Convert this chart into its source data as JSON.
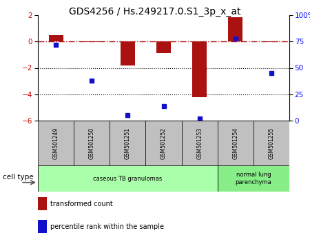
{
  "title": "GDS4256 / Hs.249217.0.S1_3p_x_at",
  "samples": [
    "GSM501249",
    "GSM501250",
    "GSM501251",
    "GSM501252",
    "GSM501253",
    "GSM501254",
    "GSM501255"
  ],
  "transformed_count": [
    0.5,
    -0.05,
    -1.8,
    -0.9,
    -4.2,
    1.85,
    -0.05
  ],
  "percentile_rank": [
    72,
    38,
    5,
    14,
    2,
    78,
    45
  ],
  "ylim_left": [
    -6,
    2
  ],
  "ylim_right": [
    0,
    100
  ],
  "yticks_left": [
    -6,
    -4,
    -2,
    0,
    2
  ],
  "yticks_right": [
    0,
    25,
    50,
    75,
    100
  ],
  "bar_color": "#aa1111",
  "dot_color": "#1111cc",
  "dotted_lines": [
    -2,
    -4
  ],
  "cell_groups": [
    {
      "label": "caseous TB granulomas",
      "indices": [
        0,
        1,
        2,
        3,
        4
      ],
      "color": "#aaffaa"
    },
    {
      "label": "normal lung\nparenchyma",
      "indices": [
        5,
        6
      ],
      "color": "#88ee88"
    }
  ],
  "legend_items": [
    {
      "label": "transformed count",
      "color": "#aa1111"
    },
    {
      "label": "percentile rank within the sample",
      "color": "#1111cc"
    }
  ],
  "cell_type_label": "cell type",
  "sample_box_color": "#c0c0c0",
  "bar_width": 0.4
}
